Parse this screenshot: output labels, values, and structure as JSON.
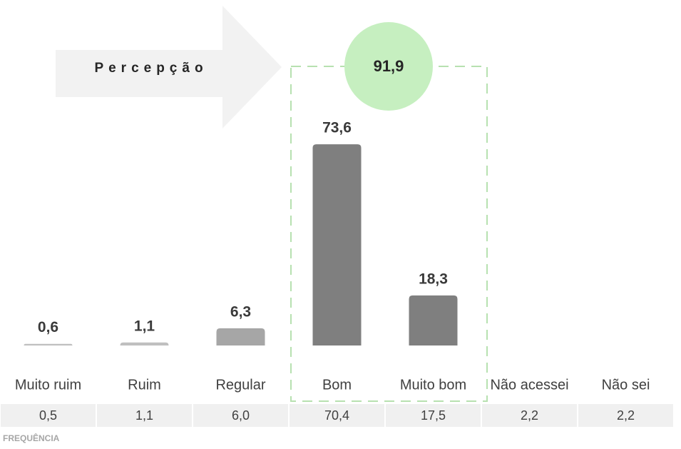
{
  "chart_data": {
    "type": "bar",
    "arrow_label": "Percepção",
    "highlight_label": "91,9",
    "categories": [
      "Muito ruim",
      "Ruim",
      "Regular",
      "Bom",
      "Muito bom",
      "Não acessei",
      "Não sei"
    ],
    "values": [
      0.6,
      1.1,
      6.3,
      73.6,
      18.3,
      null,
      null
    ],
    "value_labels": [
      "0,6",
      "1,1",
      "6,3",
      "73,6",
      "18,3",
      null,
      null
    ],
    "colors": [
      "#bfbfbf",
      "#bfbfbf",
      "#a6a6a6",
      "#7f7f7f",
      "#7f7f7f",
      null,
      null
    ],
    "ylim": [
      0,
      100
    ],
    "frequency_title": "FREQUÊNCIA",
    "frequency": [
      "0,5",
      "1,1",
      "6,0",
      "70,4",
      "17,5",
      "2,2",
      "2,2"
    ]
  }
}
